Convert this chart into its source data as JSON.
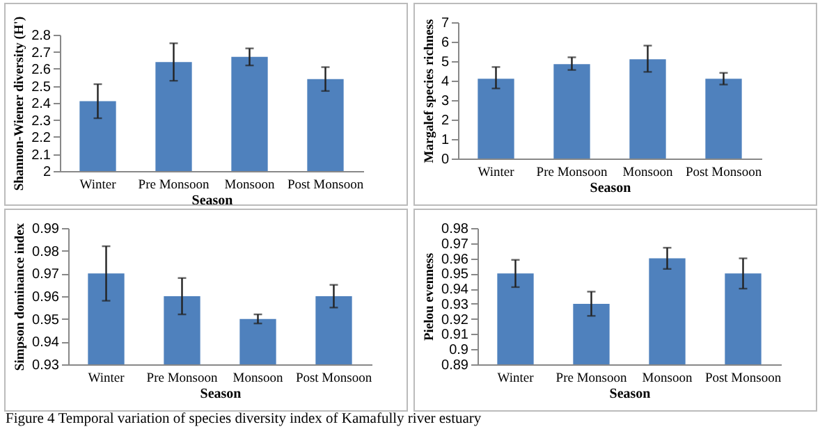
{
  "chart_data": [
    {
      "type": "bar",
      "categories": [
        "Winter",
        "Pre Monsoon",
        "Monsoon",
        "Post Monsoon"
      ],
      "xlabel": "Season",
      "ylabel": "Shannon-Wiener diversity (H')",
      "ylim": [
        2,
        2.8
      ],
      "yticks": [
        2,
        2.1,
        2.2,
        2.3,
        2.4,
        2.5,
        2.6,
        2.7,
        2.8
      ],
      "series": [
        {
          "color": "#4f81bd",
          "values": [
            2.41,
            2.64,
            2.67,
            2.54
          ],
          "errors": [
            0.1,
            0.11,
            0.05,
            0.07
          ]
        }
      ]
    },
    {
      "type": "bar",
      "categories": [
        "Winter",
        "Pre Monsoon",
        "Monsoon",
        "Post Monsoon"
      ],
      "xlabel": "Season",
      "ylabel": "Margalef species richness",
      "ylim": [
        0,
        7
      ],
      "yticks": [
        0,
        1,
        2,
        3,
        4,
        5,
        6,
        7
      ],
      "series": [
        {
          "color": "#4f81bd",
          "values": [
            4.1,
            4.85,
            5.1,
            4.1
          ],
          "errors": [
            [
              3.6,
              4.7
            ],
            [
              4.55,
              5.2
            ],
            [
              4.45,
              5.8
            ],
            [
              3.8,
              4.4
            ]
          ]
        }
      ]
    },
    {
      "type": "bar",
      "categories": [
        "Winter",
        "Pre Monsoon",
        "Monsoon",
        "Post Monsoon"
      ],
      "xlabel": "Season",
      "ylabel": "Simpson dominance index",
      "ylim": [
        0.93,
        0.99
      ],
      "yticks": [
        0.93,
        0.94,
        0.95,
        0.96,
        0.97,
        0.98,
        0.99
      ],
      "series": [
        {
          "color": "#4f81bd",
          "values": [
            0.97,
            0.96,
            0.95,
            0.96
          ],
          "errors": [
            0.012,
            0.008,
            0.002,
            0.005
          ]
        }
      ]
    },
    {
      "type": "bar",
      "categories": [
        "Winter",
        "Pre Monsoon",
        "Monsoon",
        "Post Monsoon"
      ],
      "xlabel": "Season",
      "ylabel": "Pielou evenness",
      "ylim": [
        0.89,
        0.98
      ],
      "yticks": [
        0.89,
        0.9,
        0.91,
        0.92,
        0.93,
        0.94,
        0.95,
        0.96,
        0.97,
        0.98
      ],
      "series": [
        {
          "color": "#4f81bd",
          "values": [
            0.95,
            0.93,
            0.96,
            0.95
          ],
          "errors": [
            0.009,
            0.008,
            0.007,
            0.01
          ]
        }
      ],
      "annotations": [
        "Figure 4 Temporal variation of species diversity index of Kamafully river estuary"
      ]
    }
  ]
}
